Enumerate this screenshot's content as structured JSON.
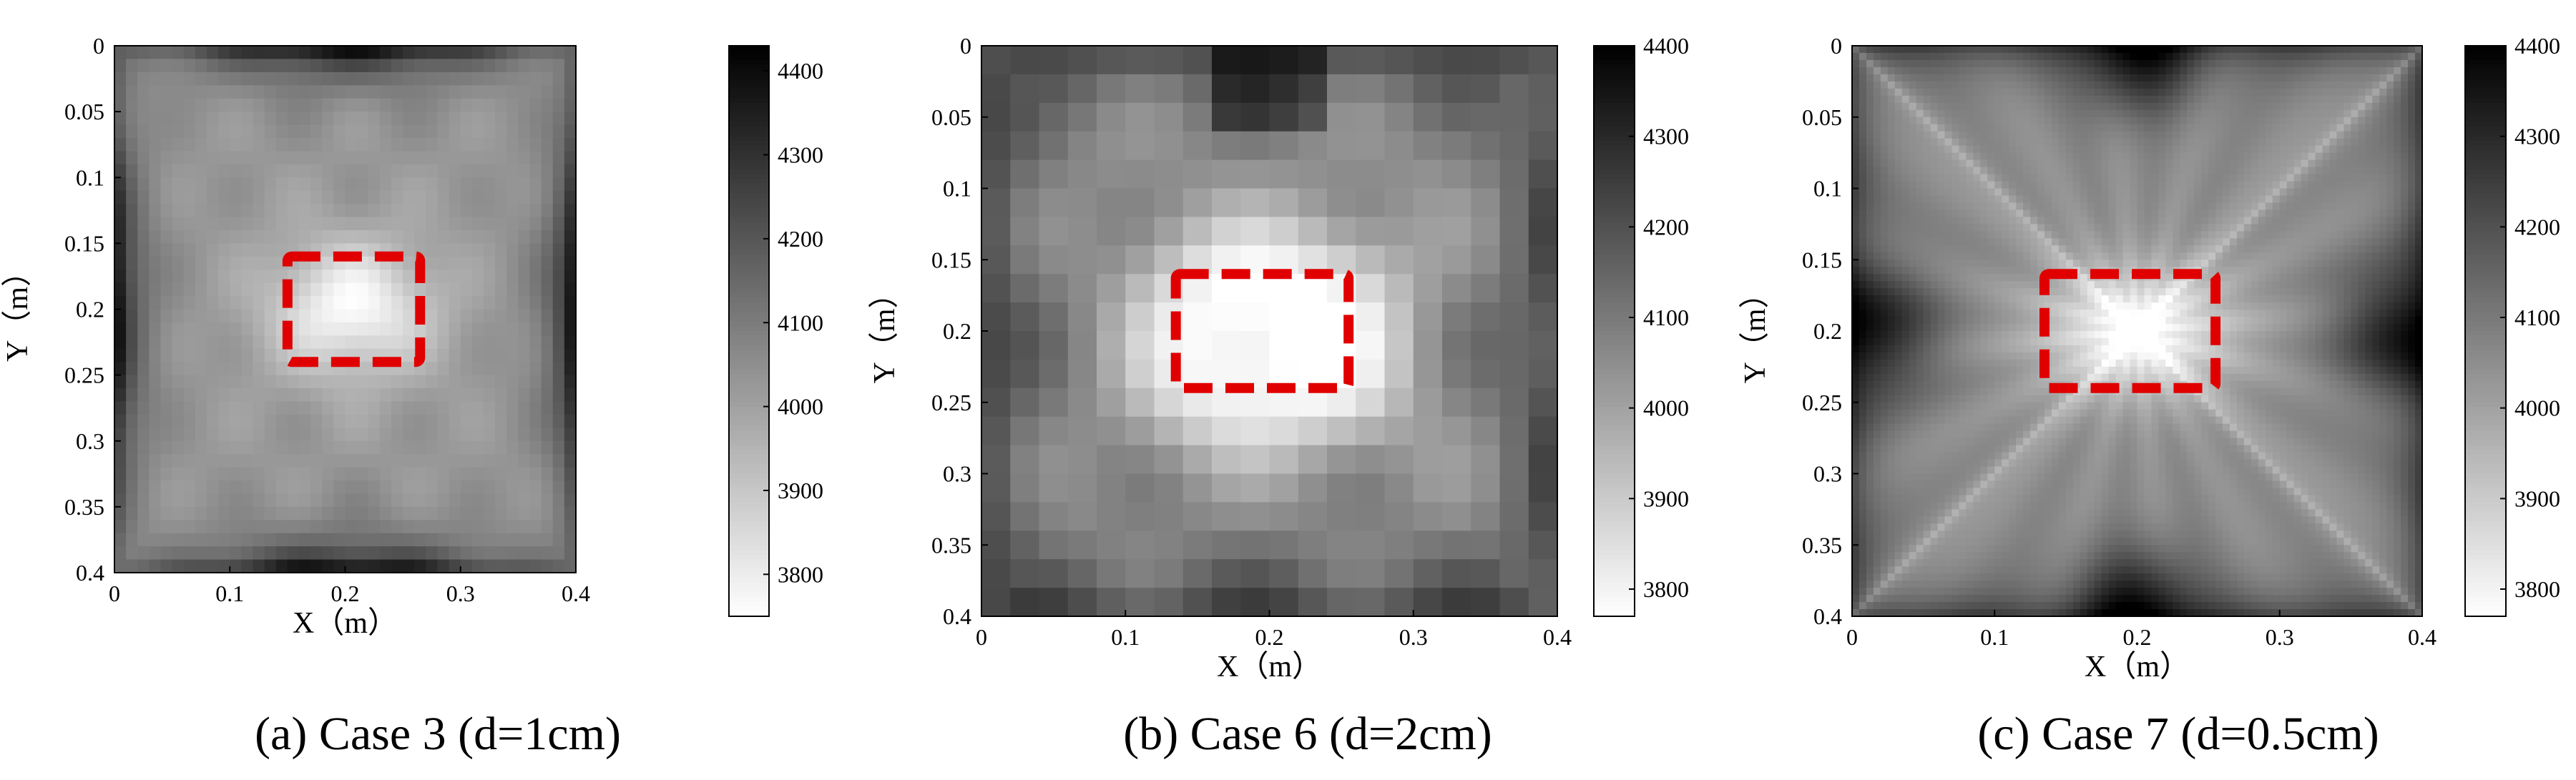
{
  "chart_data": [
    {
      "type": "heatmap",
      "panel_id": "a",
      "caption": "(a) Case 3 (d=1cm)",
      "xlabel": "X（m）",
      "ylabel": "Y（m）",
      "xlim": [
        0,
        0.4
      ],
      "ylim": [
        0,
        0.4
      ],
      "y_reversed": true,
      "xticks": [
        "0",
        "0.1",
        "0.2",
        "0.3",
        "0.4"
      ],
      "yticks": [
        "0",
        "0.05",
        "0.1",
        "0.15",
        "0.2",
        "0.25",
        "0.3",
        "0.35",
        "0.4"
      ],
      "grid_cells": 40,
      "colormap": "white-low to black-high grayscale",
      "colorbar": {
        "range": [
          3750,
          4430
        ],
        "ticks": [
          "3800",
          "3900",
          "4000",
          "4100",
          "4200",
          "4300",
          "4400"
        ]
      },
      "defect_box": {
        "x": [
          0.15,
          0.265
        ],
        "y": [
          0.16,
          0.24
        ],
        "color": "#e00000",
        "style": "dashed"
      }
    },
    {
      "type": "heatmap",
      "panel_id": "b",
      "caption": "(b) Case 6 (d=2cm)",
      "xlabel": "X（m）",
      "ylabel": "Y（m）",
      "xlim": [
        0,
        0.4
      ],
      "ylim": [
        0,
        0.4
      ],
      "y_reversed": true,
      "xticks": [
        "0",
        "0.1",
        "0.2",
        "0.3",
        "0.4"
      ],
      "yticks": [
        "0",
        "0.05",
        "0.1",
        "0.15",
        "0.2",
        "0.25",
        "0.3",
        "0.35",
        "0.4"
      ],
      "grid_cells": 20,
      "colormap": "white-low to black-high grayscale",
      "colorbar": {
        "range": [
          3770,
          4400
        ],
        "ticks": [
          "3800",
          "3900",
          "4000",
          "4100",
          "4200",
          "4300",
          "4400"
        ]
      },
      "defect_box": {
        "x": [
          0.135,
          0.255
        ],
        "y": [
          0.16,
          0.24
        ],
        "color": "#e00000",
        "style": "dashed"
      }
    },
    {
      "type": "heatmap",
      "panel_id": "c",
      "caption": "(c) Case 7 (d=0.5cm)",
      "xlabel": "X（m）",
      "ylabel": "Y（m）",
      "xlim": [
        0,
        0.4
      ],
      "ylim": [
        0,
        0.4
      ],
      "y_reversed": true,
      "xticks": [
        "0",
        "0.1",
        "0.2",
        "0.3",
        "0.4"
      ],
      "yticks": [
        "0",
        "0.05",
        "0.1",
        "0.15",
        "0.2",
        "0.25",
        "0.3",
        "0.35",
        "0.4"
      ],
      "grid_cells": 80,
      "colormap": "white-low to black-high grayscale",
      "colorbar": {
        "range": [
          3770,
          4400
        ],
        "ticks": [
          "3800",
          "3900",
          "4000",
          "4100",
          "4200",
          "4300",
          "4400"
        ]
      },
      "defect_box": {
        "x": [
          0.135,
          0.255
        ],
        "y": [
          0.16,
          0.24
        ],
        "color": "#e00000",
        "style": "dashed"
      }
    }
  ]
}
